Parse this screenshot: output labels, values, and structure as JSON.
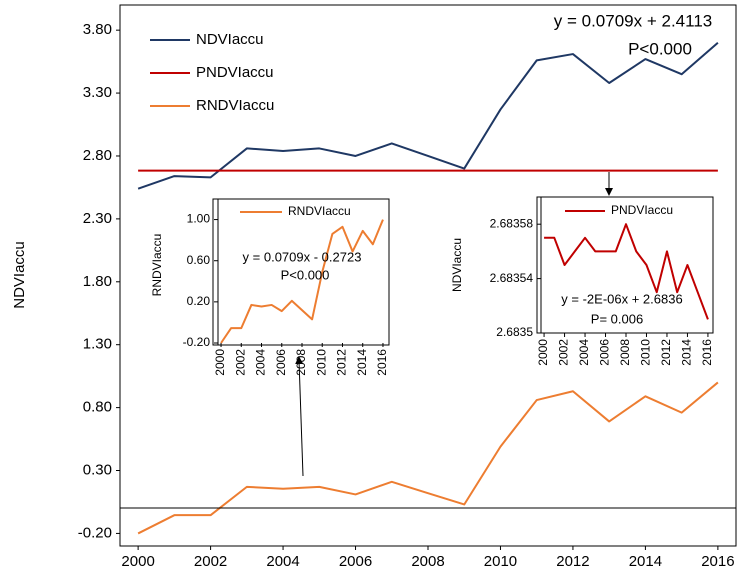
{
  "chart_data": [
    {
      "type": "line",
      "y_label": "NDVIaccu",
      "x": [
        2000,
        2001,
        2002,
        2003,
        2004,
        2005,
        2006,
        2007,
        2008,
        2009,
        2010,
        2011,
        2012,
        2013,
        2014,
        2015,
        2016
      ],
      "xlim": [
        1999.5,
        2016.5
      ],
      "xticks": [
        2000,
        2002,
        2004,
        2006,
        2008,
        2010,
        2012,
        2014,
        2016
      ],
      "ylim": [
        -0.3,
        4.0
      ],
      "yticks": [
        {
          "value": -0.2,
          "label": "-0.20"
        },
        {
          "value": 0.3,
          "label": "0.30"
        },
        {
          "value": 0.8,
          "label": "0.80"
        },
        {
          "value": 1.3,
          "label": "1.30"
        },
        {
          "value": 1.8,
          "label": "1.80"
        },
        {
          "value": 2.3,
          "label": "2.30"
        },
        {
          "value": 2.8,
          "label": "2.80"
        },
        {
          "value": 3.3,
          "label": "3.30"
        },
        {
          "value": 3.8,
          "label": "3.80"
        }
      ],
      "series": [
        {
          "name": "NDVIaccu",
          "color": "#1f3864",
          "values": [
            2.54,
            2.64,
            2.63,
            2.86,
            2.84,
            2.86,
            2.8,
            2.9,
            2.8,
            2.7,
            3.17,
            3.56,
            3.61,
            3.38,
            3.57,
            3.45,
            3.7
          ]
        },
        {
          "name": "PNDVIaccu",
          "color": "#c00000",
          "values": [
            2.68357,
            2.68357,
            2.68355,
            2.68356,
            2.68357,
            2.68356,
            2.68356,
            2.68356,
            2.68358,
            2.68356,
            2.68355,
            2.68353,
            2.68356,
            2.68353,
            2.68355,
            2.68353,
            2.68351
          ]
        },
        {
          "name": "RNDVIaccu",
          "color": "#ed7d31",
          "values": [
            -0.2,
            -0.055,
            -0.055,
            0.17,
            0.155,
            0.17,
            0.11,
            0.21,
            0.12,
            0.03,
            0.49,
            0.86,
            0.93,
            0.69,
            0.89,
            0.76,
            1.0
          ]
        }
      ],
      "annotations": [
        "y = 0.0709x + 2.4113",
        "P<0.000"
      ]
    },
    {
      "type": "line",
      "y_label": "RNDVIaccu",
      "x": [
        2000,
        2001,
        2002,
        2003,
        2004,
        2005,
        2006,
        2007,
        2008,
        2009,
        2010,
        2011,
        2012,
        2013,
        2014,
        2015,
        2016
      ],
      "xlim": [
        1999.7,
        2016.3
      ],
      "xticks": [
        2000,
        2002,
        2004,
        2006,
        2008,
        2010,
        2012,
        2014,
        2016
      ],
      "ylim": [
        -0.2,
        1.2
      ],
      "yticks": [
        {
          "value": -0.2,
          "label": "-0.20"
        },
        {
          "value": 0.2,
          "label": "0.20"
        },
        {
          "value": 0.6,
          "label": "0.60"
        },
        {
          "value": 1.0,
          "label": "1.00"
        }
      ],
      "series": [
        {
          "name": "RNDVIaccu",
          "color": "#ed7d31",
          "values": [
            -0.2,
            -0.055,
            -0.055,
            0.17,
            0.155,
            0.17,
            0.11,
            0.21,
            0.12,
            0.03,
            0.49,
            0.86,
            0.93,
            0.69,
            0.89,
            0.76,
            1.0
          ]
        }
      ],
      "annotations": [
        "y = 0.0709x - 0.2723",
        "P<0.000"
      ]
    },
    {
      "type": "line",
      "y_label": "NDVIaccu",
      "x": [
        2000,
        2001,
        2002,
        2003,
        2004,
        2005,
        2006,
        2007,
        2008,
        2009,
        2010,
        2011,
        2012,
        2013,
        2014,
        2015,
        2016
      ],
      "xlim": [
        1999.7,
        2016.3
      ],
      "xticks": [
        2000,
        2002,
        2004,
        2006,
        2008,
        2010,
        2012,
        2014,
        2016
      ],
      "ylim": [
        2.6835,
        2.6836
      ],
      "yticks": [
        2.6835,
        2.68354,
        2.68358
      ],
      "series": [
        {
          "name": "PNDVIaccu",
          "color": "#c00000",
          "values": [
            2.68357,
            2.68357,
            2.68355,
            2.68356,
            2.68357,
            2.68356,
            2.68356,
            2.68356,
            2.68358,
            2.68356,
            2.68355,
            2.68353,
            2.68356,
            2.68353,
            2.68355,
            2.68353,
            2.68351
          ]
        }
      ],
      "annotations": [
        "y = -2E-06x + 2.6836",
        "P= 0.006"
      ]
    }
  ]
}
